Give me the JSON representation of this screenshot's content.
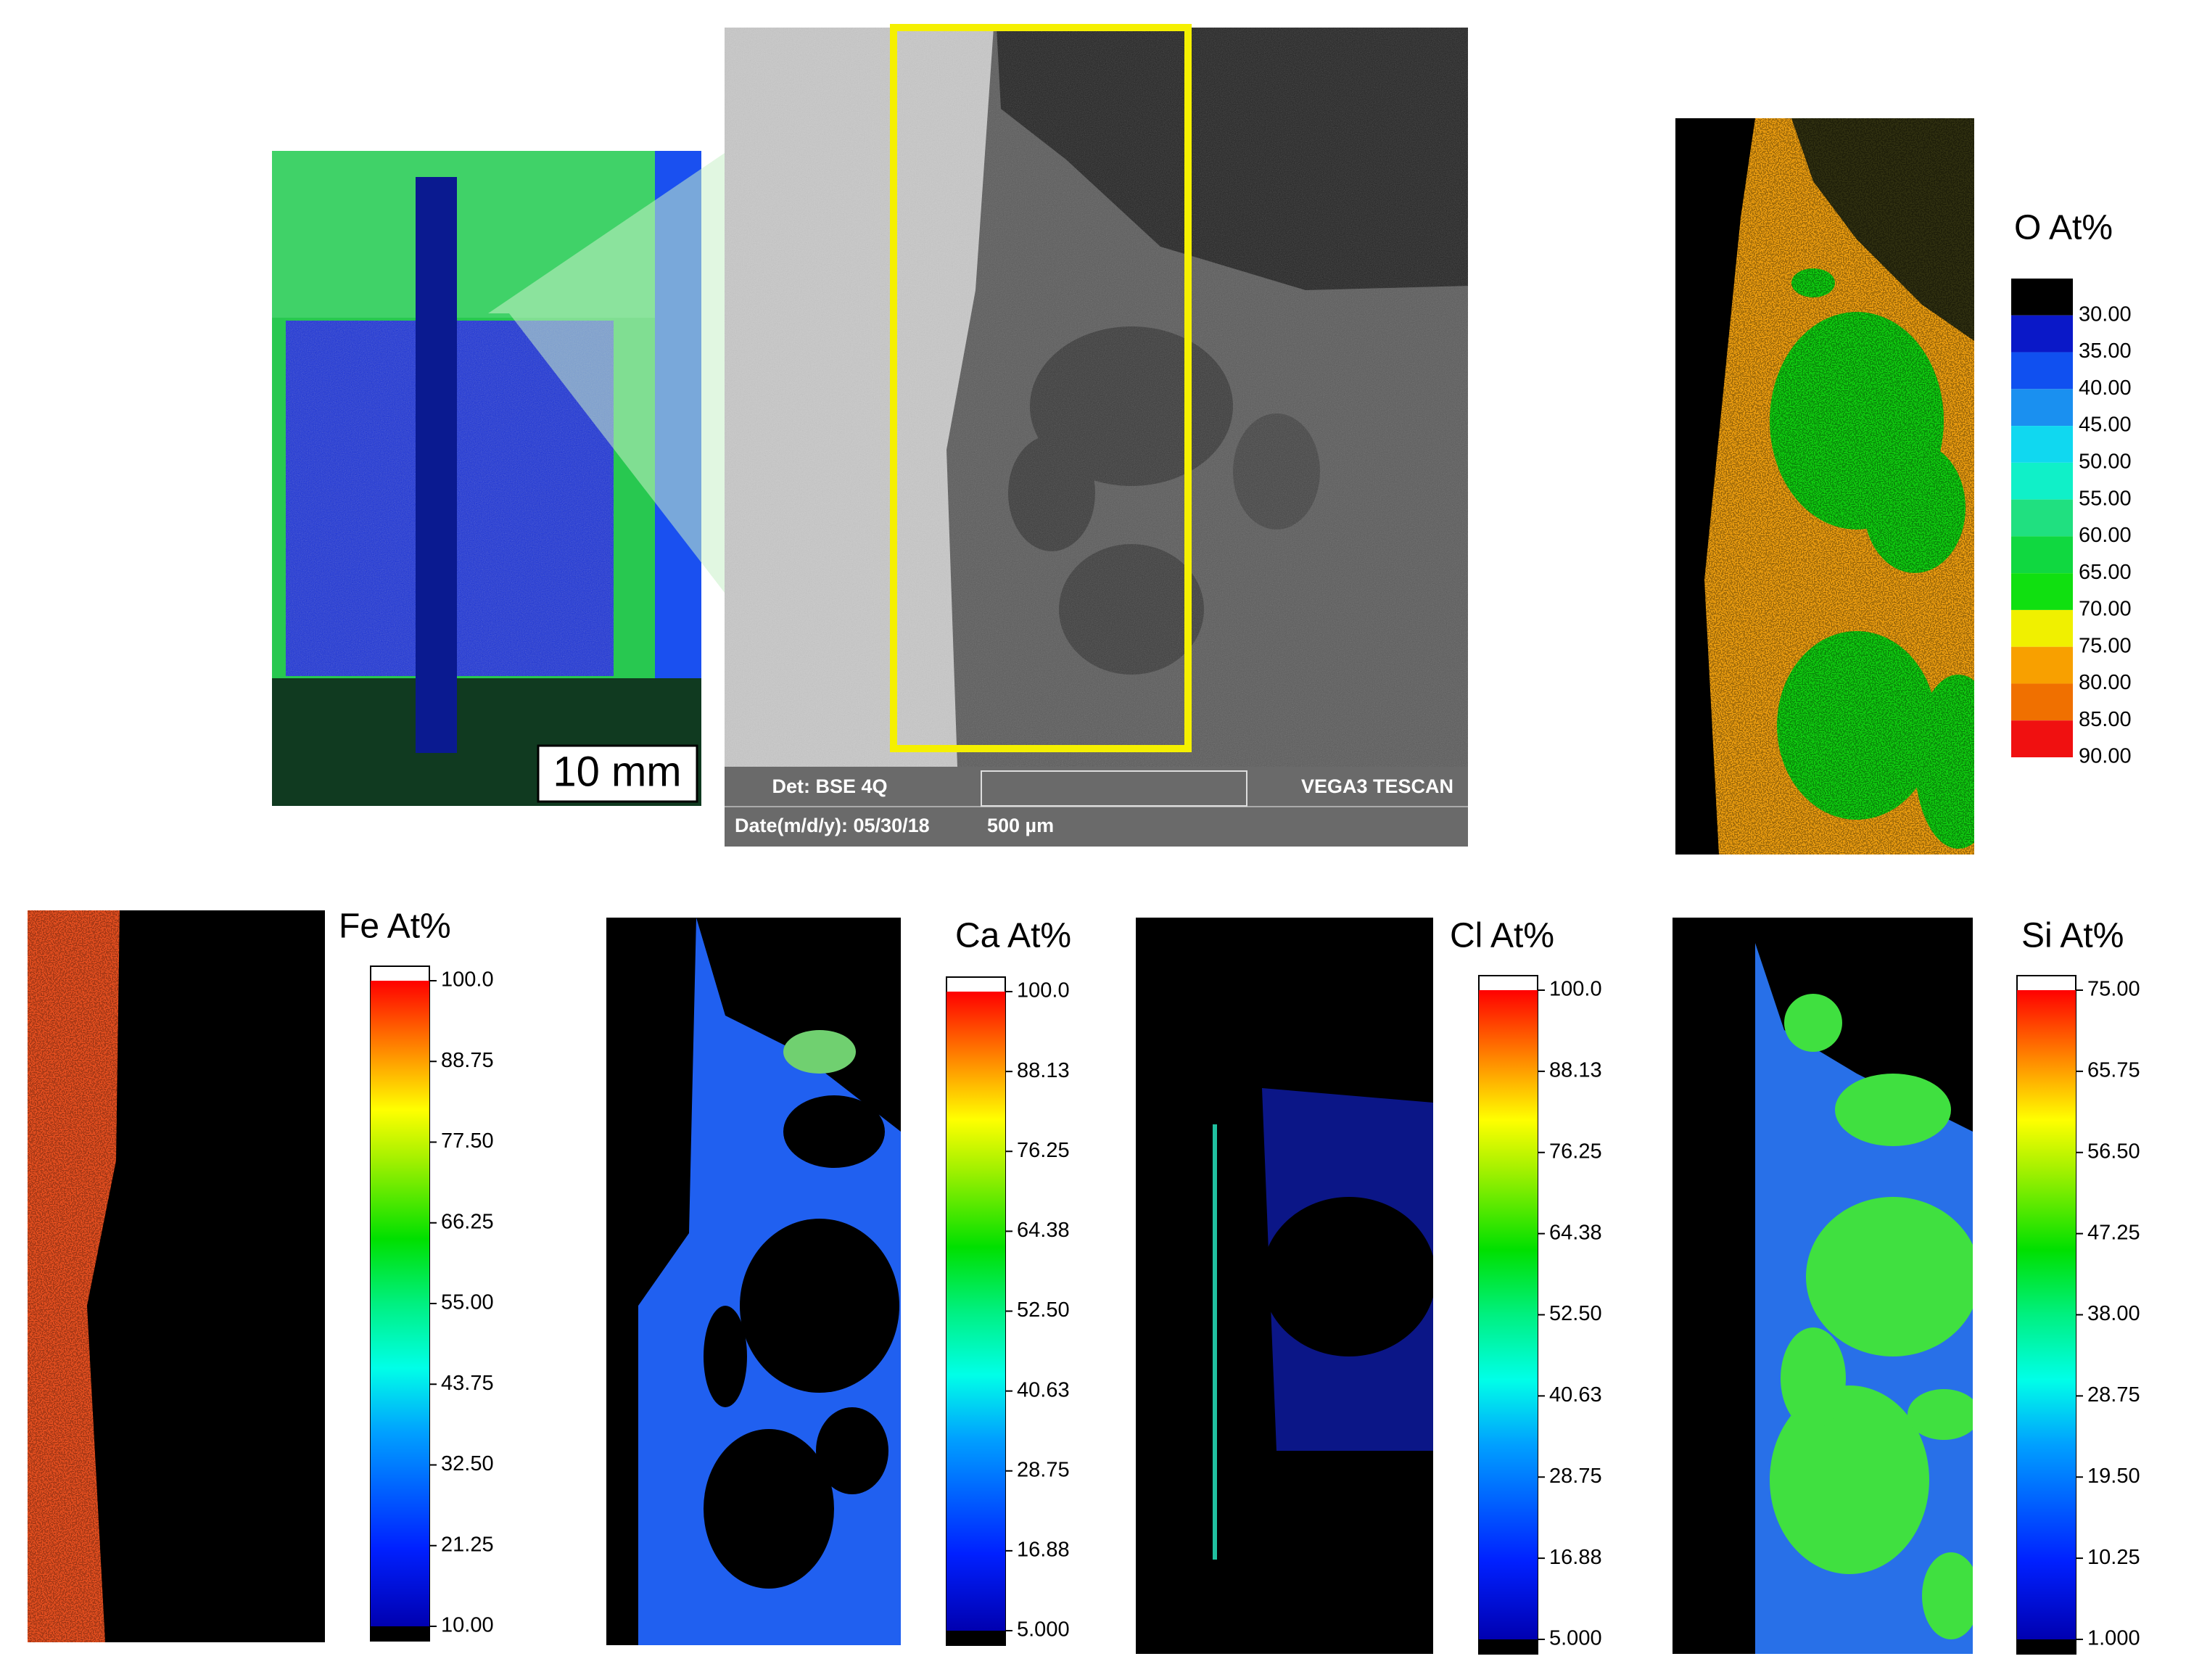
{
  "photo": {
    "scale_label": "10 mm"
  },
  "sem": {
    "detector": "Det: BSE 4Q",
    "instrument": "VEGA3 TESCAN",
    "date": "Date(m/d/y): 05/30/18",
    "scale": "500 µm"
  },
  "maps": [
    {
      "title": "O At%",
      "ticks": [
        "30.00",
        "35.00",
        "40.00",
        "45.00",
        "50.00",
        "55.00",
        "60.00",
        "65.00",
        "70.00",
        "75.00",
        "80.00",
        "85.00",
        "90.00"
      ]
    },
    {
      "title": "Fe At%",
      "ticks": [
        "100.0",
        "88.75",
        "77.50",
        "66.25",
        "55.00",
        "43.75",
        "32.50",
        "21.25",
        "10.00"
      ]
    },
    {
      "title": "Ca At%",
      "ticks": [
        "100.0",
        "88.13",
        "76.25",
        "64.38",
        "52.50",
        "40.63",
        "28.75",
        "16.88",
        "5.000"
      ]
    },
    {
      "title": "Cl At%",
      "ticks": [
        "100.0",
        "88.13",
        "76.25",
        "64.38",
        "52.50",
        "40.63",
        "28.75",
        "16.88",
        "5.000"
      ]
    },
    {
      "title": "Si At%",
      "ticks": [
        "75.00",
        "65.75",
        "56.50",
        "47.25",
        "38.00",
        "28.75",
        "19.50",
        "10.25",
        "1.000"
      ]
    }
  ]
}
